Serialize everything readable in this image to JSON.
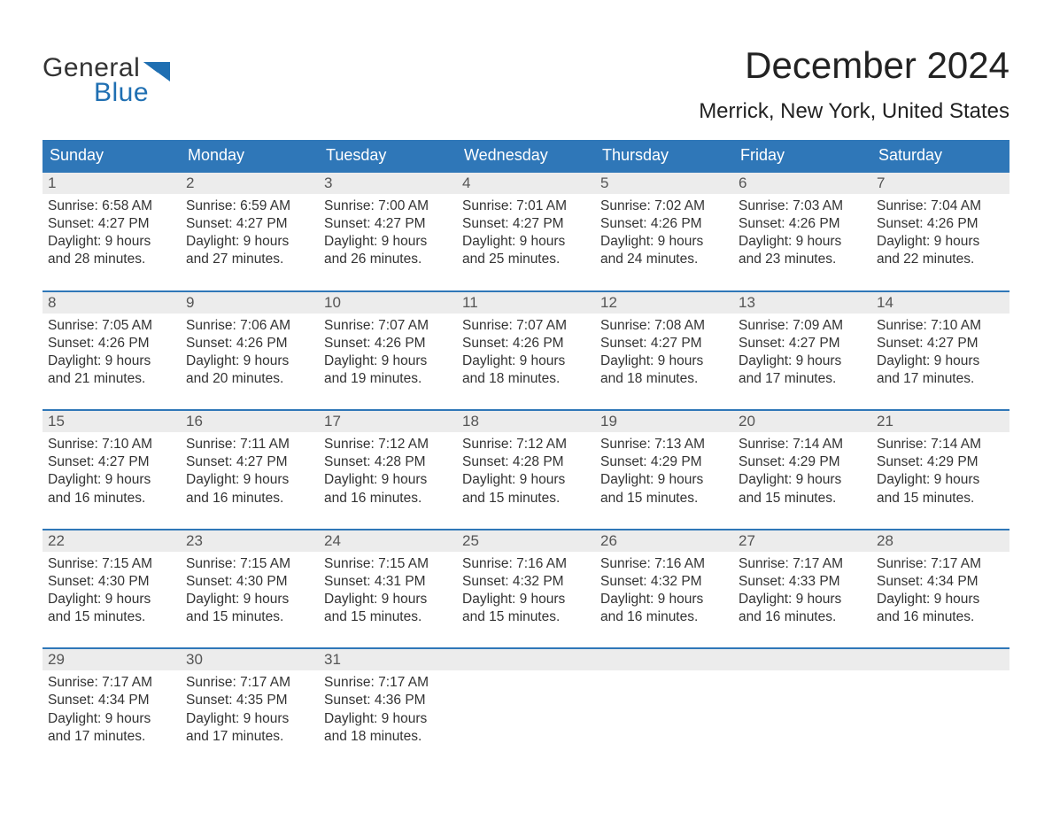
{
  "logo": {
    "line1": "General",
    "line2": "Blue",
    "accent_color": "#1f6fb2"
  },
  "title": "December 2024",
  "location": "Merrick, New York, United States",
  "colors": {
    "header_bg": "#2f77b8",
    "header_text": "#ffffff",
    "daynum_bg": "#ececec",
    "week_border": "#2f77b8",
    "text": "#333333"
  },
  "day_names": [
    "Sunday",
    "Monday",
    "Tuesday",
    "Wednesday",
    "Thursday",
    "Friday",
    "Saturday"
  ],
  "weeks": [
    [
      {
        "day": "1",
        "sunrise": "Sunrise: 6:58 AM",
        "sunset": "Sunset: 4:27 PM",
        "dl1": "Daylight: 9 hours",
        "dl2": "and 28 minutes."
      },
      {
        "day": "2",
        "sunrise": "Sunrise: 6:59 AM",
        "sunset": "Sunset: 4:27 PM",
        "dl1": "Daylight: 9 hours",
        "dl2": "and 27 minutes."
      },
      {
        "day": "3",
        "sunrise": "Sunrise: 7:00 AM",
        "sunset": "Sunset: 4:27 PM",
        "dl1": "Daylight: 9 hours",
        "dl2": "and 26 minutes."
      },
      {
        "day": "4",
        "sunrise": "Sunrise: 7:01 AM",
        "sunset": "Sunset: 4:27 PM",
        "dl1": "Daylight: 9 hours",
        "dl2": "and 25 minutes."
      },
      {
        "day": "5",
        "sunrise": "Sunrise: 7:02 AM",
        "sunset": "Sunset: 4:26 PM",
        "dl1": "Daylight: 9 hours",
        "dl2": "and 24 minutes."
      },
      {
        "day": "6",
        "sunrise": "Sunrise: 7:03 AM",
        "sunset": "Sunset: 4:26 PM",
        "dl1": "Daylight: 9 hours",
        "dl2": "and 23 minutes."
      },
      {
        "day": "7",
        "sunrise": "Sunrise: 7:04 AM",
        "sunset": "Sunset: 4:26 PM",
        "dl1": "Daylight: 9 hours",
        "dl2": "and 22 minutes."
      }
    ],
    [
      {
        "day": "8",
        "sunrise": "Sunrise: 7:05 AM",
        "sunset": "Sunset: 4:26 PM",
        "dl1": "Daylight: 9 hours",
        "dl2": "and 21 minutes."
      },
      {
        "day": "9",
        "sunrise": "Sunrise: 7:06 AM",
        "sunset": "Sunset: 4:26 PM",
        "dl1": "Daylight: 9 hours",
        "dl2": "and 20 minutes."
      },
      {
        "day": "10",
        "sunrise": "Sunrise: 7:07 AM",
        "sunset": "Sunset: 4:26 PM",
        "dl1": "Daylight: 9 hours",
        "dl2": "and 19 minutes."
      },
      {
        "day": "11",
        "sunrise": "Sunrise: 7:07 AM",
        "sunset": "Sunset: 4:26 PM",
        "dl1": "Daylight: 9 hours",
        "dl2": "and 18 minutes."
      },
      {
        "day": "12",
        "sunrise": "Sunrise: 7:08 AM",
        "sunset": "Sunset: 4:27 PM",
        "dl1": "Daylight: 9 hours",
        "dl2": "and 18 minutes."
      },
      {
        "day": "13",
        "sunrise": "Sunrise: 7:09 AM",
        "sunset": "Sunset: 4:27 PM",
        "dl1": "Daylight: 9 hours",
        "dl2": "and 17 minutes."
      },
      {
        "day": "14",
        "sunrise": "Sunrise: 7:10 AM",
        "sunset": "Sunset: 4:27 PM",
        "dl1": "Daylight: 9 hours",
        "dl2": "and 17 minutes."
      }
    ],
    [
      {
        "day": "15",
        "sunrise": "Sunrise: 7:10 AM",
        "sunset": "Sunset: 4:27 PM",
        "dl1": "Daylight: 9 hours",
        "dl2": "and 16 minutes."
      },
      {
        "day": "16",
        "sunrise": "Sunrise: 7:11 AM",
        "sunset": "Sunset: 4:27 PM",
        "dl1": "Daylight: 9 hours",
        "dl2": "and 16 minutes."
      },
      {
        "day": "17",
        "sunrise": "Sunrise: 7:12 AM",
        "sunset": "Sunset: 4:28 PM",
        "dl1": "Daylight: 9 hours",
        "dl2": "and 16 minutes."
      },
      {
        "day": "18",
        "sunrise": "Sunrise: 7:12 AM",
        "sunset": "Sunset: 4:28 PM",
        "dl1": "Daylight: 9 hours",
        "dl2": "and 15 minutes."
      },
      {
        "day": "19",
        "sunrise": "Sunrise: 7:13 AM",
        "sunset": "Sunset: 4:29 PM",
        "dl1": "Daylight: 9 hours",
        "dl2": "and 15 minutes."
      },
      {
        "day": "20",
        "sunrise": "Sunrise: 7:14 AM",
        "sunset": "Sunset: 4:29 PM",
        "dl1": "Daylight: 9 hours",
        "dl2": "and 15 minutes."
      },
      {
        "day": "21",
        "sunrise": "Sunrise: 7:14 AM",
        "sunset": "Sunset: 4:29 PM",
        "dl1": "Daylight: 9 hours",
        "dl2": "and 15 minutes."
      }
    ],
    [
      {
        "day": "22",
        "sunrise": "Sunrise: 7:15 AM",
        "sunset": "Sunset: 4:30 PM",
        "dl1": "Daylight: 9 hours",
        "dl2": "and 15 minutes."
      },
      {
        "day": "23",
        "sunrise": "Sunrise: 7:15 AM",
        "sunset": "Sunset: 4:30 PM",
        "dl1": "Daylight: 9 hours",
        "dl2": "and 15 minutes."
      },
      {
        "day": "24",
        "sunrise": "Sunrise: 7:15 AM",
        "sunset": "Sunset: 4:31 PM",
        "dl1": "Daylight: 9 hours",
        "dl2": "and 15 minutes."
      },
      {
        "day": "25",
        "sunrise": "Sunrise: 7:16 AM",
        "sunset": "Sunset: 4:32 PM",
        "dl1": "Daylight: 9 hours",
        "dl2": "and 15 minutes."
      },
      {
        "day": "26",
        "sunrise": "Sunrise: 7:16 AM",
        "sunset": "Sunset: 4:32 PM",
        "dl1": "Daylight: 9 hours",
        "dl2": "and 16 minutes."
      },
      {
        "day": "27",
        "sunrise": "Sunrise: 7:17 AM",
        "sunset": "Sunset: 4:33 PM",
        "dl1": "Daylight: 9 hours",
        "dl2": "and 16 minutes."
      },
      {
        "day": "28",
        "sunrise": "Sunrise: 7:17 AM",
        "sunset": "Sunset: 4:34 PM",
        "dl1": "Daylight: 9 hours",
        "dl2": "and 16 minutes."
      }
    ],
    [
      {
        "day": "29",
        "sunrise": "Sunrise: 7:17 AM",
        "sunset": "Sunset: 4:34 PM",
        "dl1": "Daylight: 9 hours",
        "dl2": "and 17 minutes."
      },
      {
        "day": "30",
        "sunrise": "Sunrise: 7:17 AM",
        "sunset": "Sunset: 4:35 PM",
        "dl1": "Daylight: 9 hours",
        "dl2": "and 17 minutes."
      },
      {
        "day": "31",
        "sunrise": "Sunrise: 7:17 AM",
        "sunset": "Sunset: 4:36 PM",
        "dl1": "Daylight: 9 hours",
        "dl2": "and 18 minutes."
      },
      null,
      null,
      null,
      null
    ]
  ]
}
